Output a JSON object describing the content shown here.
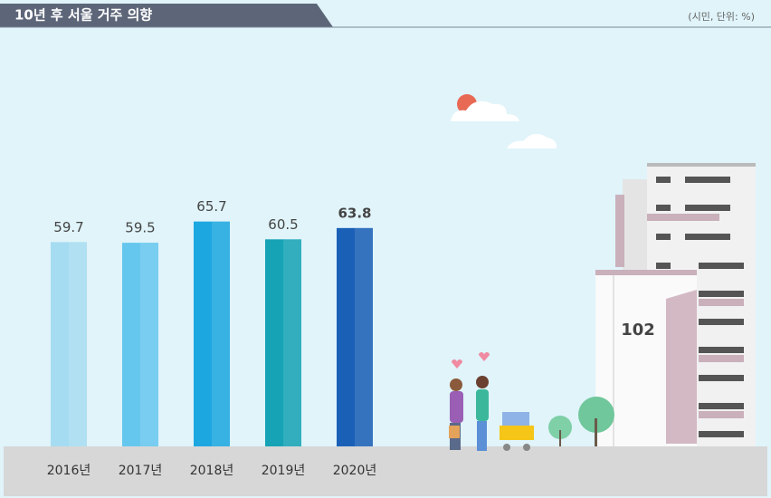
{
  "chart_data": {
    "type": "bar",
    "title": "10년 후 서울 거주 의향",
    "subtitle": "(시민, 단위: %)",
    "categories": [
      "2016년",
      "2017년",
      "2018년",
      "2019년",
      "2020년"
    ],
    "values": [
      59.7,
      59.5,
      65.7,
      60.5,
      63.8
    ],
    "colors": [
      "#a6dcf1",
      "#66c7ee",
      "#1da7e0",
      "#16a3b6",
      "#1b60b7"
    ],
    "label_colors": [
      "#555555",
      "#555555",
      "#555555",
      "#555555",
      "#1a72c4"
    ]
  },
  "decoration": {
    "building_number": "102"
  }
}
